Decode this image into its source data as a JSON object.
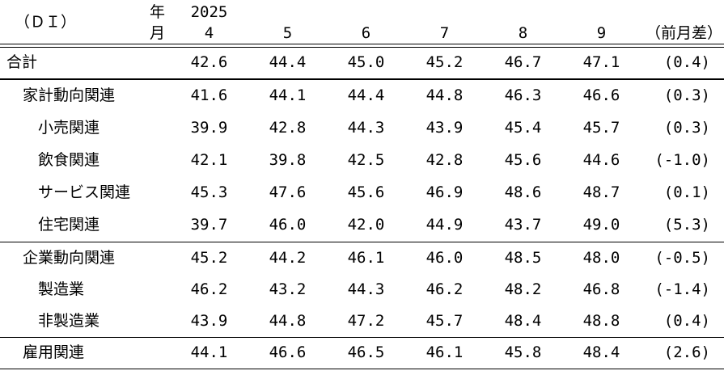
{
  "table": {
    "unit_label": "（ＤＩ）",
    "year_label": "年",
    "year_value": "2025",
    "month_label": "月",
    "months": [
      "4",
      "5",
      "6",
      "7",
      "8",
      "9"
    ],
    "diff_header": "（前月差）",
    "rows": [
      {
        "label": "合計",
        "indent": 0,
        "values": [
          "42.6",
          "44.4",
          "45.0",
          "45.2",
          "46.7",
          "47.1"
        ],
        "diff": "(0.4)"
      },
      {
        "label": "家計動向関連",
        "indent": 1,
        "values": [
          "41.6",
          "44.1",
          "44.4",
          "44.8",
          "46.3",
          "46.6"
        ],
        "diff": "(0.3)"
      },
      {
        "label": "小売関連",
        "indent": 2,
        "values": [
          "39.9",
          "42.8",
          "44.3",
          "43.9",
          "45.4",
          "45.7"
        ],
        "diff": "(0.3)"
      },
      {
        "label": "飲食関連",
        "indent": 2,
        "values": [
          "42.1",
          "39.8",
          "42.5",
          "42.8",
          "45.6",
          "44.6"
        ],
        "diff": "(-1.0)"
      },
      {
        "label": "サービス関連",
        "indent": 2,
        "values": [
          "45.3",
          "47.6",
          "45.6",
          "46.9",
          "48.6",
          "48.7"
        ],
        "diff": "(0.1)"
      },
      {
        "label": "住宅関連",
        "indent": 2,
        "values": [
          "39.7",
          "46.0",
          "42.0",
          "44.9",
          "43.7",
          "49.0"
        ],
        "diff": "(5.3)"
      },
      {
        "label": "企業動向関連",
        "indent": 1,
        "values": [
          "45.2",
          "44.2",
          "46.1",
          "46.0",
          "48.5",
          "48.0"
        ],
        "diff": "(-0.5)"
      },
      {
        "label": "製造業",
        "indent": 2,
        "values": [
          "46.2",
          "43.2",
          "44.3",
          "46.2",
          "48.2",
          "46.8"
        ],
        "diff": "(-1.4)"
      },
      {
        "label": "非製造業",
        "indent": 2,
        "values": [
          "43.9",
          "44.8",
          "47.2",
          "45.7",
          "48.4",
          "48.8"
        ],
        "diff": "(0.4)"
      },
      {
        "label": "雇用関連",
        "indent": 1,
        "values": [
          "44.1",
          "46.6",
          "46.5",
          "46.1",
          "45.8",
          "48.4"
        ],
        "diff": "(2.6)"
      }
    ]
  }
}
